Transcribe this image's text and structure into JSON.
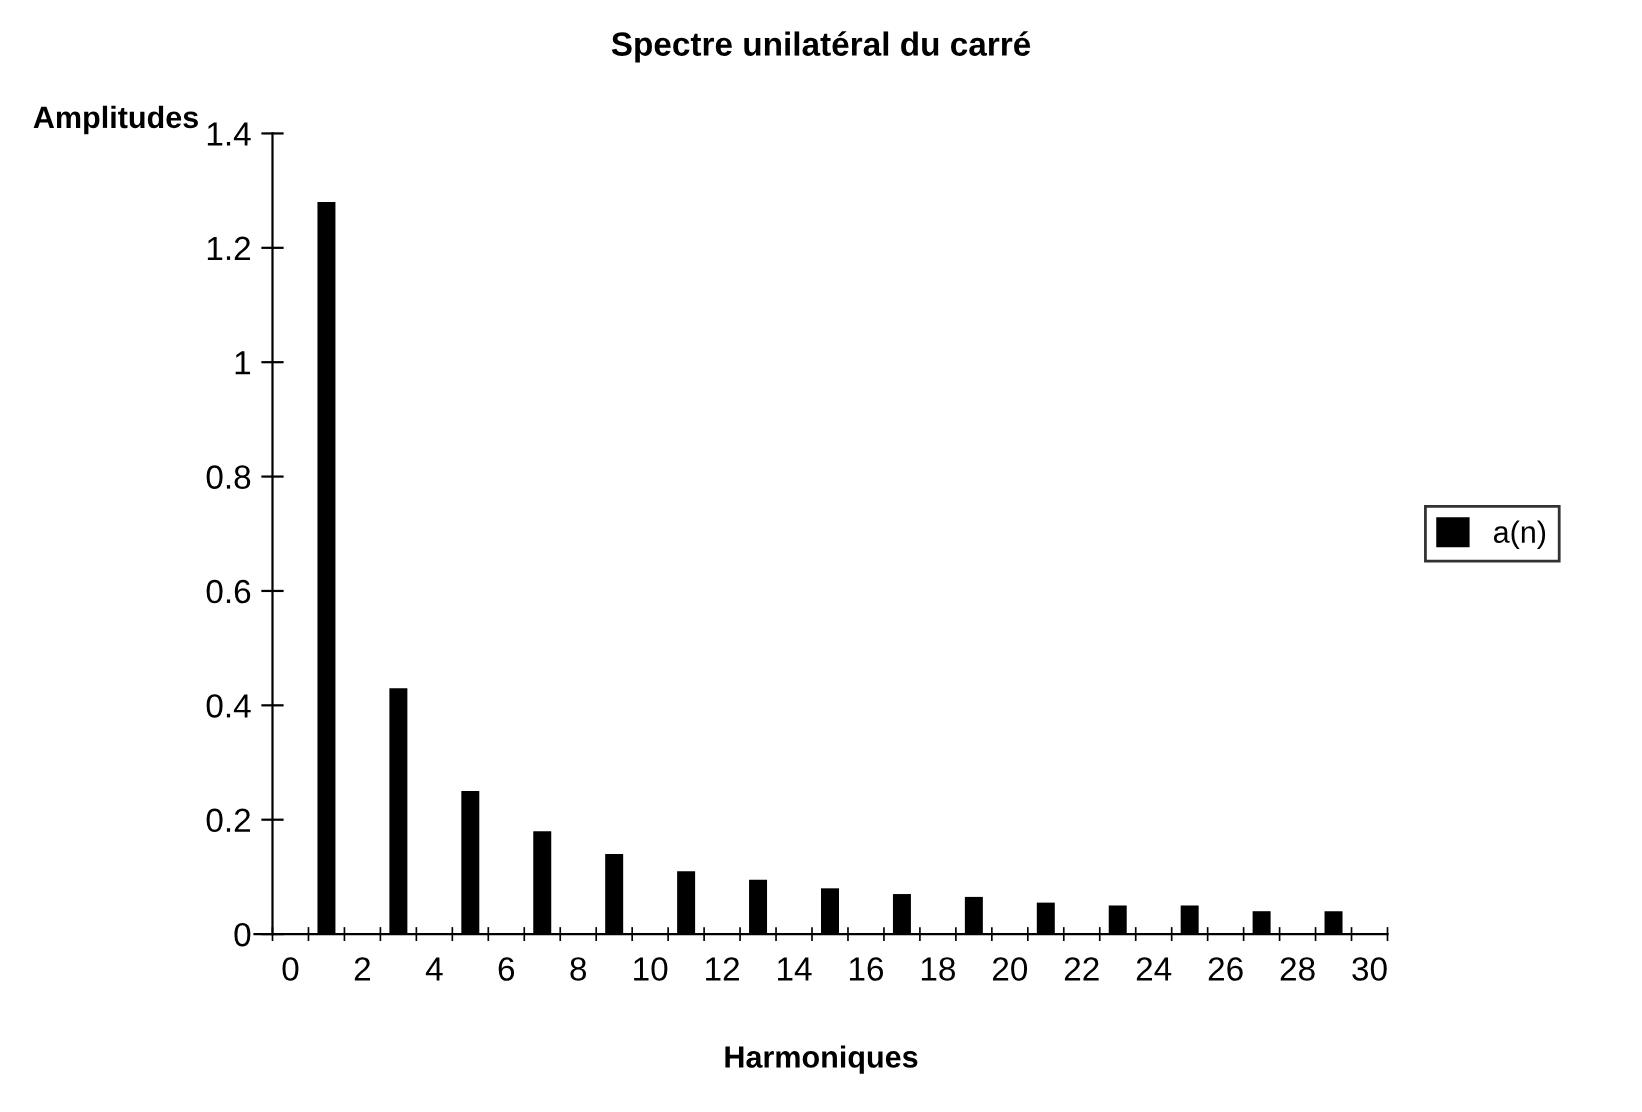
{
  "chart_data": {
    "type": "bar",
    "title": "Spectre unilatéral du carré",
    "ylabel": "Amplitudes",
    "xlabel": "Harmoniques",
    "categories": [
      "0",
      null,
      "2",
      null,
      "4",
      null,
      "6",
      null,
      "8",
      null,
      "10",
      null,
      "12",
      null,
      "14",
      null,
      "16",
      null,
      "18",
      null,
      "20",
      null,
      "22",
      null,
      "24",
      null,
      "26",
      null,
      "28",
      null,
      "30"
    ],
    "series": [
      {
        "name": "a(n)",
        "color": "#000000",
        "values": [
          null,
          1.28,
          null,
          0.43,
          null,
          0.25,
          null,
          0.18,
          null,
          0.14,
          null,
          0.11,
          null,
          0.095,
          null,
          0.08,
          null,
          0.07,
          null,
          0.065,
          null,
          0.055,
          null,
          0.05,
          null,
          0.05,
          null,
          0.04,
          null,
          0.04,
          null
        ]
      }
    ],
    "ylim": [
      0,
      1.4
    ],
    "yticks": [
      0,
      0.2,
      0.4,
      0.6,
      0.8,
      1,
      1.2,
      1.4
    ],
    "grid": false,
    "legend": "right"
  }
}
